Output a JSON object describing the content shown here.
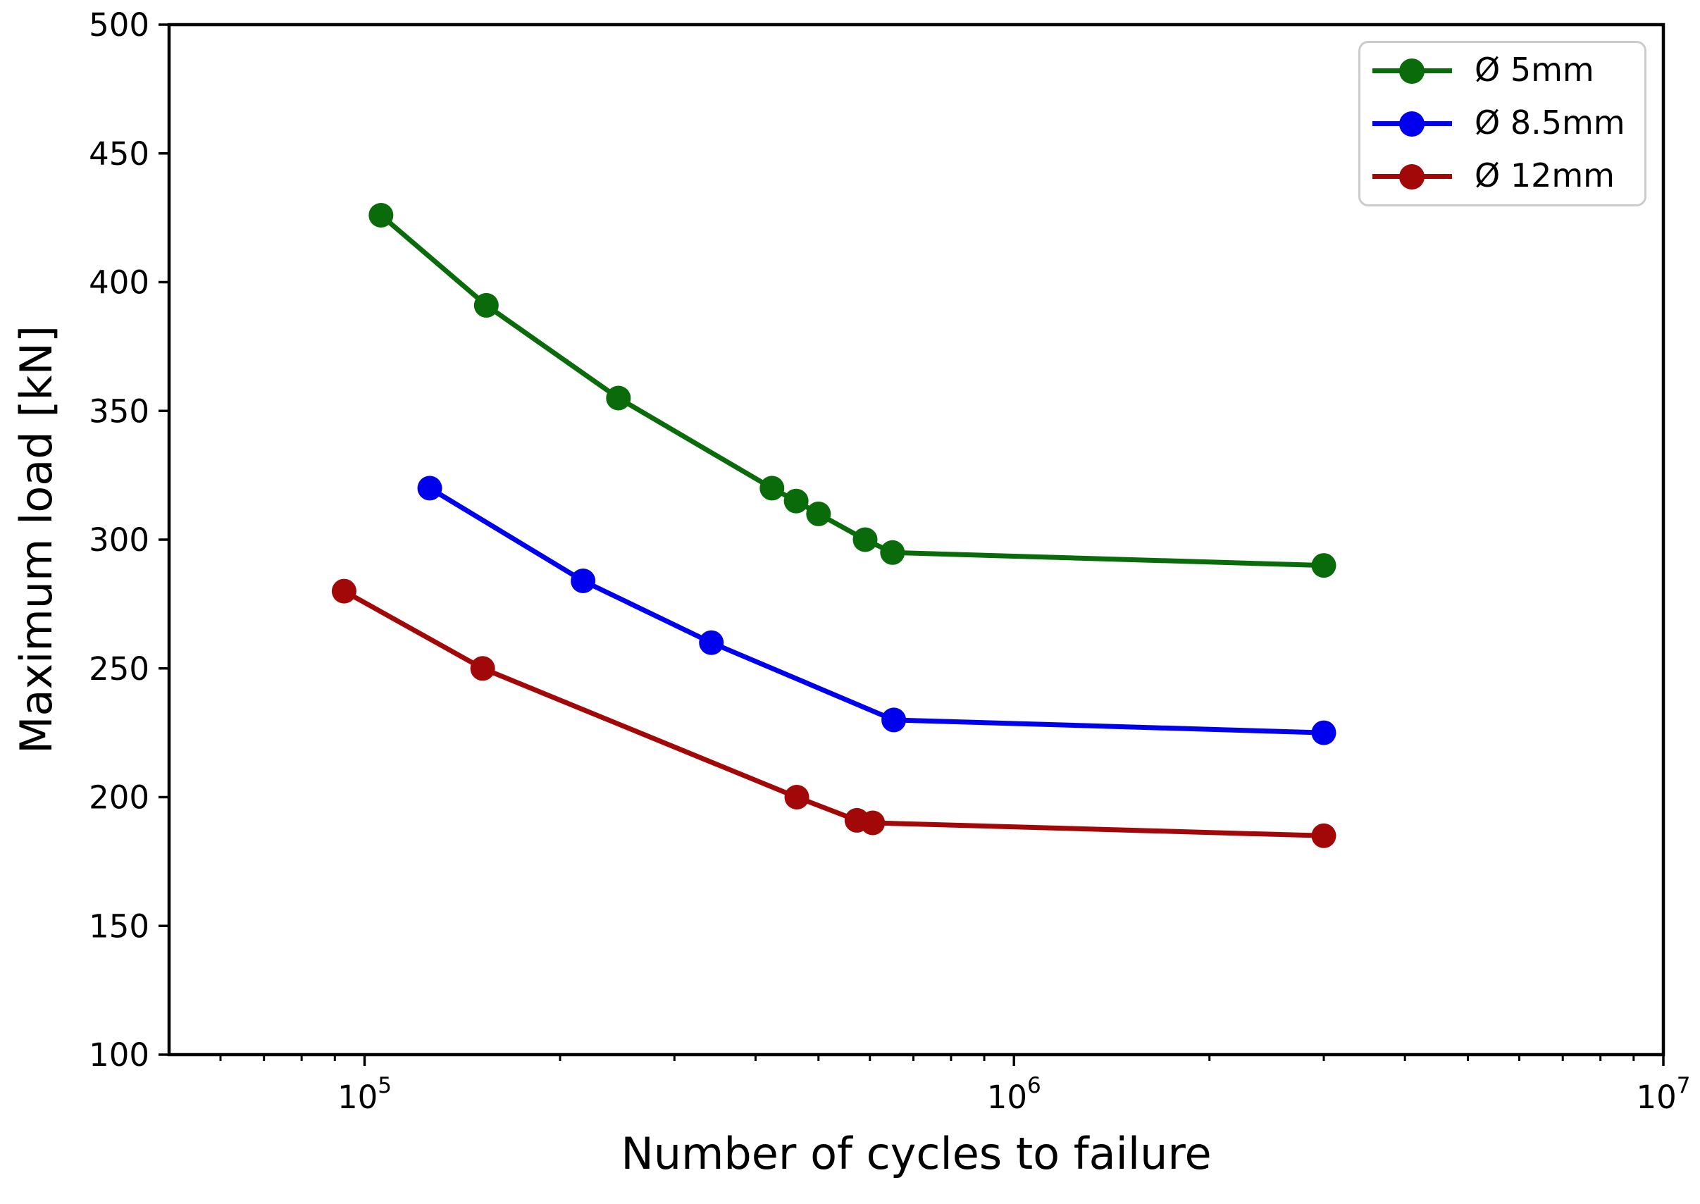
{
  "figure": {
    "background": "#ffffff",
    "axis_color": "#000000"
  },
  "chart_data": {
    "type": "line",
    "title": "",
    "xlabel": "Number of cycles to failure",
    "ylabel": "Maximum load [kN]",
    "x_scale": "log",
    "xlim": [
      50000,
      10000000
    ],
    "ylim": [
      100,
      500
    ],
    "y_ticks": [
      100,
      150,
      200,
      250,
      300,
      350,
      400,
      450,
      500
    ],
    "x_major_ticks": [
      100000,
      1000000,
      10000000
    ],
    "x_major_tick_labels": [
      {
        "base": "10",
        "exp": "5"
      },
      {
        "base": "10",
        "exp": "6"
      },
      {
        "base": "10",
        "exp": "7"
      }
    ],
    "grid": false,
    "legend_position": "upper right",
    "series": [
      {
        "name": "Ø 5mm",
        "color": "#096b09",
        "x": [
          106000,
          154000,
          246000,
          424000,
          462000,
          500000,
          590000,
          650000,
          3000000
        ],
        "y": [
          426,
          391,
          355,
          320,
          315,
          310,
          300,
          295,
          290
        ]
      },
      {
        "name": "Ø 8.5mm",
        "color": "#0000ee",
        "x": [
          126000,
          217000,
          342000,
          653000,
          3000000
        ],
        "y": [
          320,
          284,
          260,
          230,
          225
        ]
      },
      {
        "name": "Ø 12mm",
        "color": "#a30808",
        "x": [
          93000,
          152000,
          463000,
          573000,
          606000,
          3000000
        ],
        "y": [
          280,
          250,
          200,
          191,
          190,
          185
        ]
      }
    ]
  }
}
